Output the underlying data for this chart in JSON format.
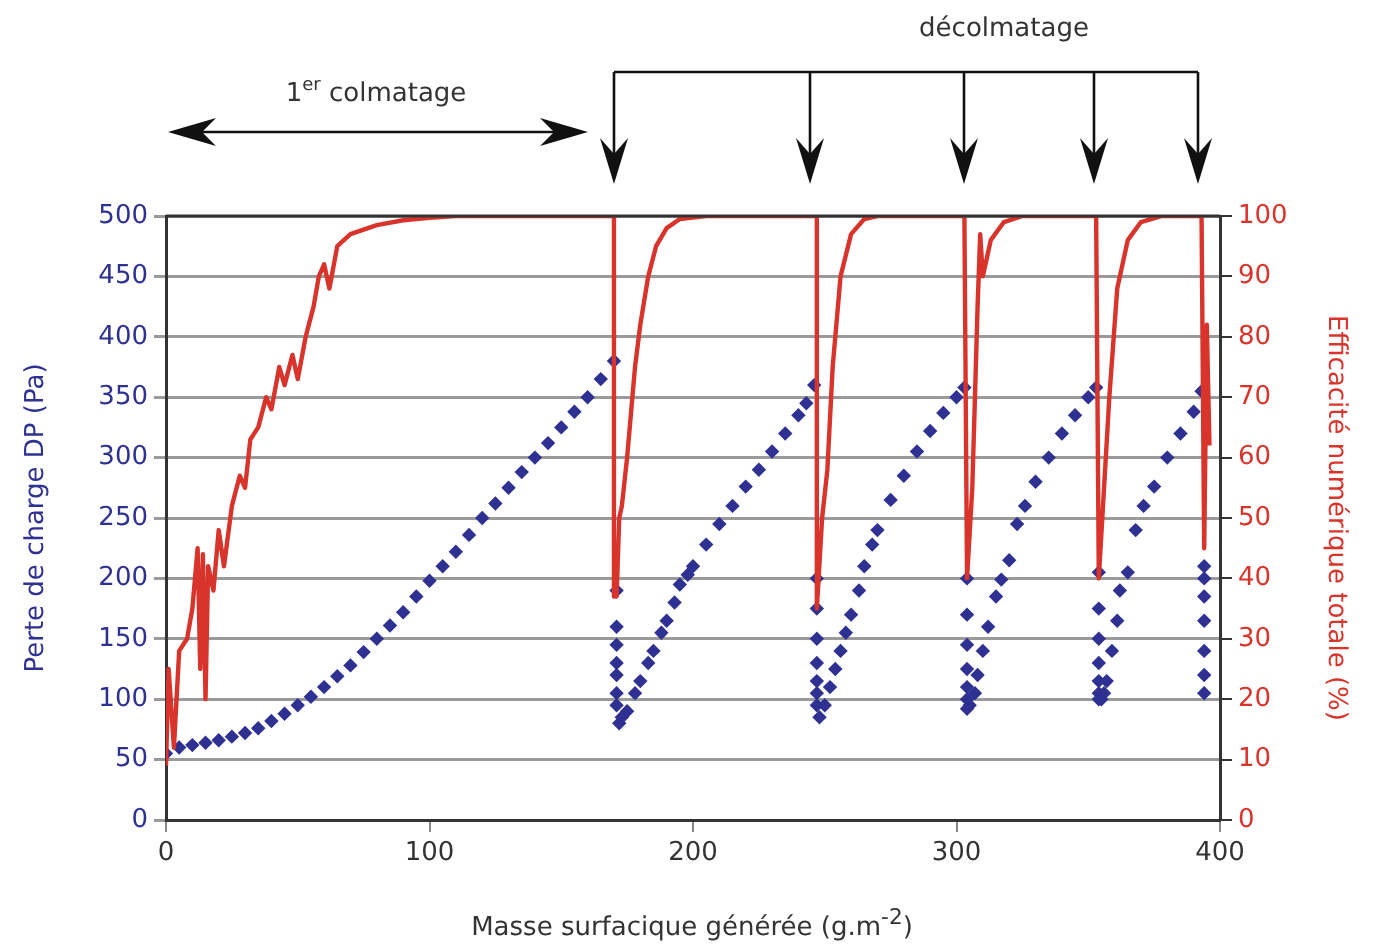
{
  "chart_data": {
    "type": "scatter",
    "xlabel": "Masse surfacique générée (g.m$^{-2}$)",
    "ylabel": "Perte de charge DP (Pa)",
    "y2label": "Efficacité numérique totale (%)",
    "annotations": [
      "1$^{er}$ colmatage",
      "décolmatage"
    ],
    "xlim": [
      0,
      400
    ],
    "xticks": [
      0,
      100,
      200,
      300,
      400
    ],
    "ylim": [
      0,
      500
    ],
    "yticks": [
      0,
      50,
      100,
      150,
      200,
      250,
      300,
      350,
      400,
      450,
      500
    ],
    "y2lim": [
      0,
      100
    ],
    "y2ticks": [
      0,
      10,
      20,
      30,
      40,
      50,
      60,
      70,
      80,
      90,
      100
    ],
    "grid": "y",
    "legend": false,
    "marker": "diamond",
    "series": [
      {
        "type": "scatter",
        "color": "#2e3192",
        "x": [
          0,
          5,
          10,
          15,
          20,
          25,
          30,
          35,
          40,
          45,
          50,
          55,
          60,
          65,
          70,
          75,
          80,
          85,
          90,
          95,
          100,
          105,
          110,
          115,
          120,
          125,
          130,
          135,
          140,
          145,
          150,
          155,
          160,
          165,
          170,
          171,
          171,
          171,
          171,
          171,
          171,
          171,
          172,
          173,
          175,
          178,
          180,
          183,
          185,
          188,
          190,
          193,
          195,
          198,
          200,
          205,
          210,
          215,
          220,
          225,
          230,
          235,
          240,
          243,
          246,
          247,
          247,
          247,
          247,
          247,
          247,
          247,
          248,
          250,
          252,
          254,
          256,
          258,
          260,
          263,
          265,
          268,
          270,
          275,
          280,
          285,
          290,
          295,
          300,
          303,
          304,
          304,
          304,
          304,
          304,
          304,
          304,
          305,
          307,
          308,
          310,
          312,
          315,
          317,
          320,
          323,
          326,
          330,
          335,
          340,
          345,
          350,
          353,
          354,
          354,
          354,
          354,
          354,
          354,
          354,
          355,
          356,
          357,
          359,
          361,
          362,
          365,
          368,
          371,
          375,
          380,
          385,
          390,
          393,
          394,
          394,
          394,
          394,
          394,
          394,
          394
        ],
        "values": [
          55,
          60,
          62,
          64,
          66,
          69,
          72,
          76,
          82,
          88,
          95,
          102,
          110,
          119,
          128,
          139,
          150,
          161,
          172,
          185,
          198,
          210,
          222,
          236,
          250,
          262,
          275,
          288,
          300,
          312,
          325,
          338,
          350,
          365,
          380,
          190,
          160,
          145,
          130,
          120,
          105,
          95,
          80,
          85,
          90,
          105,
          115,
          130,
          140,
          155,
          165,
          180,
          195,
          203,
          210,
          228,
          245,
          260,
          276,
          290,
          305,
          320,
          335,
          345,
          360,
          200,
          175,
          150,
          130,
          115,
          105,
          95,
          85,
          95,
          110,
          125,
          140,
          155,
          170,
          190,
          210,
          228,
          240,
          265,
          285,
          305,
          322,
          337,
          350,
          358,
          200,
          170,
          145,
          125,
          110,
          100,
          92,
          95,
          105,
          120,
          140,
          160,
          185,
          199,
          215,
          245,
          260,
          280,
          300,
          320,
          335,
          350,
          358,
          205,
          175,
          150,
          130,
          115,
          105,
          100,
          100,
          105,
          115,
          140,
          165,
          190,
          205,
          240,
          260,
          276,
          300,
          320,
          338,
          355,
          210,
          200,
          185,
          165,
          140,
          120,
          105
        ]
      },
      {
        "type": "line",
        "axis": "y2",
        "marker": "none",
        "color": "#d9342b",
        "x": [
          0,
          1,
          3,
          5,
          8,
          10,
          12,
          13,
          14,
          15,
          16,
          18,
          20,
          22,
          25,
          28,
          30,
          32,
          35,
          38,
          40,
          43,
          45,
          48,
          50,
          53,
          56,
          58,
          60,
          62,
          65,
          70,
          80,
          90,
          100,
          110,
          170,
          170,
          171,
          172,
          173,
          175,
          178,
          180,
          183,
          186,
          190,
          195,
          205,
          246,
          247,
          247,
          249,
          251,
          253,
          256,
          260,
          265,
          270,
          303,
          304,
          306,
          308,
          309,
          310,
          313,
          318,
          325,
          353,
          354,
          356,
          358,
          361,
          365,
          370,
          378,
          393,
          394,
          395,
          396
        ],
        "values": [
          9,
          25,
          12,
          28,
          30,
          35,
          45,
          25,
          44,
          20,
          42,
          38,
          48,
          42,
          52,
          57,
          55,
          63,
          65,
          70,
          68,
          75,
          72,
          77,
          73,
          80,
          85,
          90,
          92,
          88,
          95,
          97,
          98.5,
          99.3,
          99.7,
          100,
          100,
          37,
          37,
          50,
          52,
          60,
          75,
          82,
          90,
          95,
          98,
          99.5,
          100,
          100,
          100,
          35,
          50,
          58,
          75,
          90,
          97,
          99.5,
          100,
          100,
          40,
          55,
          85,
          97,
          90,
          96,
          99,
          100,
          100,
          40,
          55,
          70,
          88,
          96,
          99,
          100,
          100,
          45,
          82,
          62
        ]
      }
    ]
  }
}
